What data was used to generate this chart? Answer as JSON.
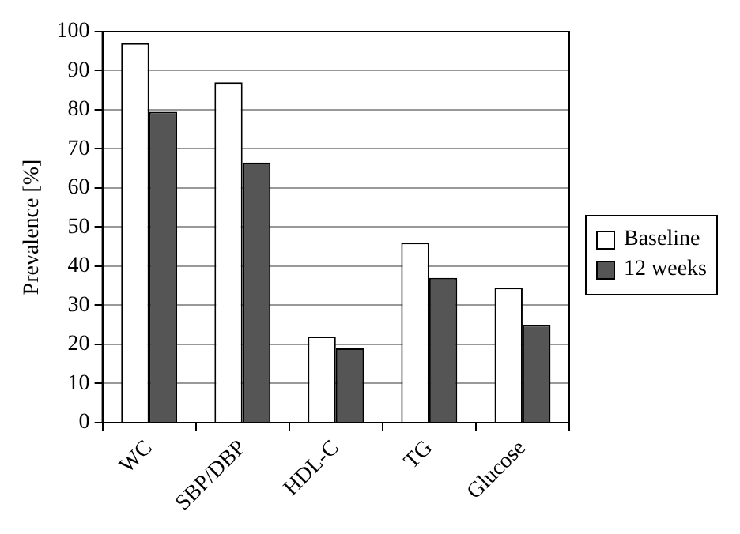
{
  "chart_data": {
    "type": "bar",
    "ylabel": "Prevalence [%]",
    "categories": [
      "WC",
      "SBP/DBP",
      "HDL-C",
      "TG",
      "Glucose"
    ],
    "series": [
      {
        "name": "Baseline",
        "color": "#ffffff",
        "values": [
          97,
          87,
          22,
          46,
          34.5
        ]
      },
      {
        "name": "12 weeks",
        "color": "#555555",
        "values": [
          79.5,
          66.5,
          19,
          37,
          25
        ]
      }
    ],
    "ylim": [
      0,
      100
    ],
    "yticks": [
      0,
      10,
      20,
      30,
      40,
      50,
      60,
      70,
      80,
      90,
      100
    ],
    "grid": "y",
    "legend": "right"
  }
}
